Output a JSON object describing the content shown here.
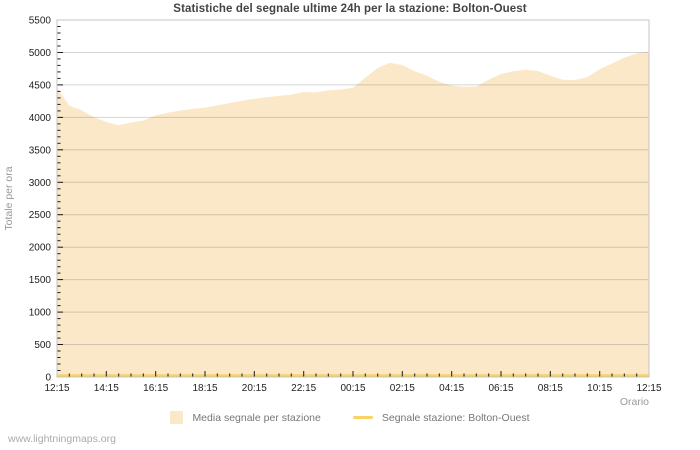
{
  "footer": {
    "watermark": "www.lightningmaps.org"
  },
  "chart_data": {
    "type": "area",
    "title": "Statistiche del segnale ultime 24h per la stazione: Bolton-Ouest",
    "xlabel": "Orario",
    "ylabel": "Totale per ora",
    "ylim": [
      0,
      5500
    ],
    "ytick_step": 500,
    "y_minor_step": 100,
    "x_major_every": 4,
    "grid": "horizontal-only",
    "legend_position": "bottom-center",
    "x": [
      "12:15",
      "12:45",
      "13:15",
      "13:45",
      "14:15",
      "14:45",
      "15:15",
      "15:45",
      "16:15",
      "16:45",
      "17:15",
      "17:45",
      "18:15",
      "18:45",
      "19:15",
      "19:45",
      "20:15",
      "20:45",
      "21:15",
      "21:45",
      "22:15",
      "22:45",
      "23:15",
      "23:45",
      "00:15",
      "00:45",
      "01:15",
      "01:45",
      "02:15",
      "02:45",
      "03:15",
      "03:45",
      "04:15",
      "04:45",
      "05:15",
      "05:45",
      "06:15",
      "06:45",
      "07:15",
      "07:45",
      "08:15",
      "08:45",
      "09:15",
      "09:45",
      "10:15",
      "10:45",
      "11:15",
      "11:45",
      "12:15"
    ],
    "x_major_labels": [
      "12:15",
      "14:15",
      "16:15",
      "18:15",
      "20:15",
      "22:15",
      "00:15",
      "02:15",
      "04:15",
      "06:15",
      "08:15",
      "10:15",
      "12:15"
    ],
    "series": [
      {
        "name": "Media segnale per stazione",
        "style": "area",
        "values": [
          4460,
          4180,
          4110,
          4000,
          3930,
          3880,
          3920,
          3950,
          4030,
          4070,
          4105,
          4130,
          4150,
          4185,
          4220,
          4255,
          4285,
          4310,
          4330,
          4350,
          4390,
          4385,
          4415,
          4430,
          4455,
          4610,
          4760,
          4840,
          4805,
          4710,
          4640,
          4550,
          4490,
          4470,
          4475,
          4580,
          4670,
          4710,
          4735,
          4715,
          4640,
          4580,
          4575,
          4620,
          4740,
          4830,
          4920,
          4985,
          5015
        ]
      },
      {
        "name": "Segnale stazione: Bolton-Ouest",
        "style": "line",
        "values": [
          0,
          0,
          0,
          0,
          0,
          0,
          0,
          0,
          0,
          0,
          0,
          0,
          0,
          0,
          0,
          0,
          0,
          0,
          0,
          0,
          0,
          0,
          0,
          0,
          0,
          0,
          0,
          0,
          0,
          0,
          0,
          0,
          0,
          0,
          0,
          0,
          0,
          0,
          0,
          0,
          0,
          0,
          0,
          0,
          0,
          0,
          0,
          0,
          0
        ]
      }
    ],
    "colors": {
      "area_fill": "#FBE8C8",
      "line": "#F8D264",
      "grid": "#D9D9D9",
      "border": "#C4C4C4",
      "tick": "#1a1a1a",
      "tick_label": "#222222",
      "title_color": "#444444",
      "muted_label": "#999999",
      "legend_text": "#777777",
      "watermark": "#ABABAB"
    }
  }
}
